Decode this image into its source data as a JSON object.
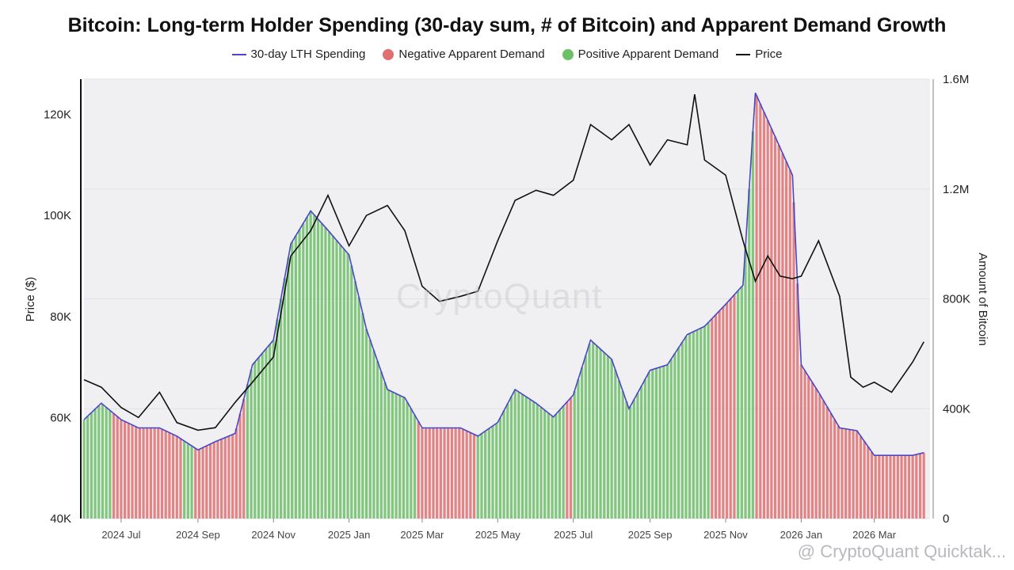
{
  "chart_data": {
    "type": "bar",
    "title": "Bitcoin: Long-term Holder Spending (30-day sum, # of Bitcoin) and Apparent Demand Growth",
    "ylabel_left": "Price ($)",
    "ylabel_right": "Amount of Bitcoin",
    "y_left_ticks": [
      "40K",
      "60K",
      "80K",
      "100K",
      "120K"
    ],
    "y_left_range": [
      40000,
      127000
    ],
    "y_right_ticks": [
      "0",
      "400K",
      "800K",
      "1.2M",
      "1.6M"
    ],
    "y_right_range": [
      0,
      1600000
    ],
    "x_ticks": [
      "2024 Jul",
      "2024 Sep",
      "2024 Nov",
      "2025 Jan",
      "2025 Mar",
      "2025 May",
      "2025 Jul",
      "2025 Sep",
      "2025 Nov",
      "2026 Jan",
      "2026 Mar"
    ],
    "x_range": [
      "2024-06-01",
      "2026-04-15"
    ],
    "legend_placement": "top-center",
    "series": [
      {
        "name": "30-day LTH Spending",
        "color": "#4a46c8",
        "points": [
          [
            "2024-06-01",
            360000
          ],
          [
            "2024-06-15",
            420000
          ],
          [
            "2024-07-01",
            360000
          ],
          [
            "2024-07-15",
            330000
          ],
          [
            "2024-08-01",
            330000
          ],
          [
            "2024-08-15",
            300000
          ],
          [
            "2024-09-01",
            250000
          ],
          [
            "2024-09-15",
            280000
          ],
          [
            "2024-10-01",
            310000
          ],
          [
            "2024-10-15",
            560000
          ],
          [
            "2024-11-01",
            650000
          ],
          [
            "2024-11-15",
            1000000
          ],
          [
            "2024-12-01",
            1120000
          ],
          [
            "2024-12-15",
            1050000
          ],
          [
            "2025-01-01",
            960000
          ],
          [
            "2025-01-15",
            690000
          ],
          [
            "2025-02-01",
            470000
          ],
          [
            "2025-02-15",
            440000
          ],
          [
            "2025-03-01",
            330000
          ],
          [
            "2025-03-15",
            330000
          ],
          [
            "2025-04-01",
            330000
          ],
          [
            "2025-04-15",
            300000
          ],
          [
            "2025-05-01",
            350000
          ],
          [
            "2025-05-15",
            470000
          ],
          [
            "2025-06-01",
            420000
          ],
          [
            "2025-06-15",
            370000
          ],
          [
            "2025-07-01",
            450000
          ],
          [
            "2025-07-15",
            650000
          ],
          [
            "2025-08-01",
            580000
          ],
          [
            "2025-08-15",
            400000
          ],
          [
            "2025-09-01",
            540000
          ],
          [
            "2025-09-15",
            560000
          ],
          [
            "2025-10-01",
            670000
          ],
          [
            "2025-10-15",
            700000
          ],
          [
            "2025-11-01",
            780000
          ],
          [
            "2025-11-15",
            850000
          ],
          [
            "2025-11-25",
            1550000
          ],
          [
            "2025-12-05",
            1450000
          ],
          [
            "2025-12-15",
            1350000
          ],
          [
            "2025-12-25",
            1250000
          ],
          [
            "2026-01-01",
            560000
          ],
          [
            "2026-01-15",
            460000
          ],
          [
            "2026-02-01",
            330000
          ],
          [
            "2026-02-15",
            320000
          ],
          [
            "2026-03-01",
            230000
          ],
          [
            "2026-03-15",
            230000
          ],
          [
            "2026-04-01",
            230000
          ],
          [
            "2026-04-10",
            240000
          ]
        ]
      },
      {
        "name": "Price",
        "color": "#111111",
        "points": [
          [
            "2024-06-01",
            67500
          ],
          [
            "2024-06-15",
            66000
          ],
          [
            "2024-07-01",
            62000
          ],
          [
            "2024-07-15",
            60000
          ],
          [
            "2024-08-01",
            65000
          ],
          [
            "2024-08-15",
            59000
          ],
          [
            "2024-09-01",
            57500
          ],
          [
            "2024-09-15",
            58000
          ],
          [
            "2024-10-01",
            63000
          ],
          [
            "2024-10-15",
            67000
          ],
          [
            "2024-11-01",
            72000
          ],
          [
            "2024-11-15",
            92000
          ],
          [
            "2024-12-01",
            97000
          ],
          [
            "2024-12-15",
            104000
          ],
          [
            "2025-01-01",
            94000
          ],
          [
            "2025-01-15",
            100000
          ],
          [
            "2025-02-01",
            102000
          ],
          [
            "2025-02-15",
            97000
          ],
          [
            "2025-03-01",
            86000
          ],
          [
            "2025-03-15",
            83000
          ],
          [
            "2025-04-01",
            84000
          ],
          [
            "2025-04-15",
            85000
          ],
          [
            "2025-05-01",
            95000
          ],
          [
            "2025-05-15",
            103000
          ],
          [
            "2025-06-01",
            105000
          ],
          [
            "2025-06-15",
            104000
          ],
          [
            "2025-07-01",
            107000
          ],
          [
            "2025-07-15",
            118000
          ],
          [
            "2025-08-01",
            115000
          ],
          [
            "2025-08-15",
            118000
          ],
          [
            "2025-09-01",
            110000
          ],
          [
            "2025-09-15",
            115000
          ],
          [
            "2025-10-01",
            114000
          ],
          [
            "2025-10-07",
            124000
          ],
          [
            "2025-10-15",
            111000
          ],
          [
            "2025-11-01",
            108000
          ],
          [
            "2025-11-15",
            95000
          ],
          [
            "2025-11-25",
            87000
          ],
          [
            "2025-12-05",
            92000
          ],
          [
            "2025-12-15",
            88000
          ],
          [
            "2025-12-25",
            87500
          ],
          [
            "2026-01-01",
            88000
          ],
          [
            "2026-01-15",
            95000
          ],
          [
            "2026-02-01",
            84000
          ],
          [
            "2026-02-10",
            68000
          ],
          [
            "2026-02-20",
            66000
          ],
          [
            "2026-03-01",
            67000
          ],
          [
            "2026-03-15",
            65000
          ],
          [
            "2026-04-01",
            71000
          ],
          [
            "2026-04-10",
            75000
          ]
        ]
      }
    ],
    "demand_regimes": [
      {
        "name": "Positive Apparent Demand",
        "color": "#6cc066",
        "start": "2024-06-01",
        "end": "2024-06-25"
      },
      {
        "name": "Negative Apparent Demand",
        "color": "#e07070",
        "start": "2024-06-25",
        "end": "2024-08-20"
      },
      {
        "name": "Positive Apparent Demand",
        "color": "#6cc066",
        "start": "2024-08-20",
        "end": "2024-08-28"
      },
      {
        "name": "Negative Apparent Demand",
        "color": "#e07070",
        "start": "2024-08-28",
        "end": "2024-10-10"
      },
      {
        "name": "Positive Apparent Demand",
        "color": "#6cc066",
        "start": "2024-10-10",
        "end": "2025-02-25"
      },
      {
        "name": "Negative Apparent Demand",
        "color": "#e07070",
        "start": "2025-02-25",
        "end": "2025-04-15"
      },
      {
        "name": "Positive Apparent Demand",
        "color": "#6cc066",
        "start": "2025-04-15",
        "end": "2025-06-25"
      },
      {
        "name": "Negative Apparent Demand",
        "color": "#e07070",
        "start": "2025-06-25",
        "end": "2025-07-02"
      },
      {
        "name": "Positive Apparent Demand",
        "color": "#6cc066",
        "start": "2025-07-02",
        "end": "2025-10-20"
      },
      {
        "name": "Negative Apparent Demand",
        "color": "#e07070",
        "start": "2025-10-20",
        "end": "2025-11-10"
      },
      {
        "name": "Positive Apparent Demand",
        "color": "#6cc066",
        "start": "2025-11-10",
        "end": "2025-11-25"
      },
      {
        "name": "Negative Apparent Demand",
        "color": "#e07070",
        "start": "2025-11-25",
        "end": "2026-04-15"
      }
    ]
  },
  "legend": [
    {
      "label": "30-day LTH Spending",
      "kind": "line",
      "color": "#4a46c8"
    },
    {
      "label": "Negative Apparent Demand",
      "kind": "dot",
      "color": "#e07070"
    },
    {
      "label": "Positive Apparent Demand",
      "kind": "dot",
      "color": "#6cc066"
    },
    {
      "label": "Price",
      "kind": "line",
      "color": "#111111"
    }
  ],
  "watermark": "CryptoQuant",
  "footer_mark": "@ CryptoQuant Quicktak..."
}
